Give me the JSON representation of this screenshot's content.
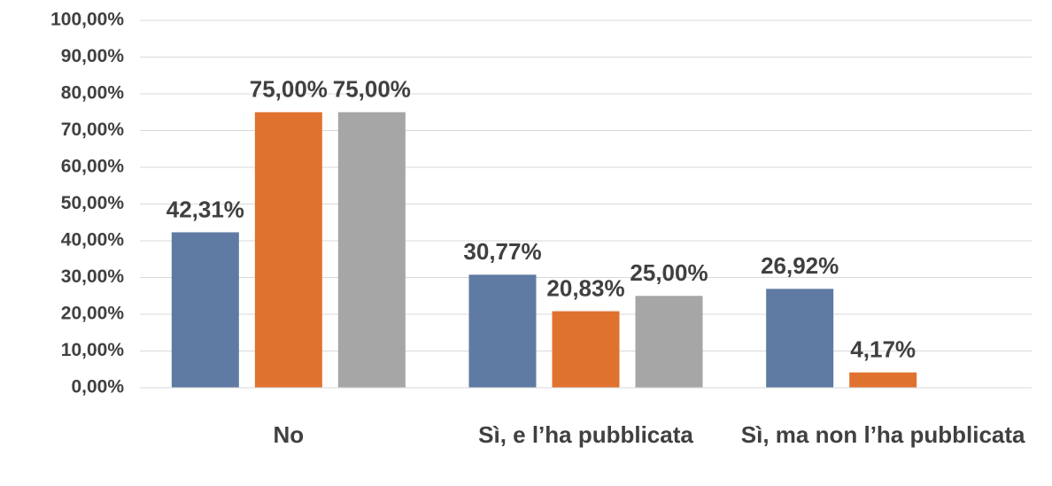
{
  "chart_data": {
    "type": "bar",
    "categories": [
      "No",
      "Sì, e l’ha pubblicata",
      "Sì, ma non l’ha pubblicata"
    ],
    "series": [
      {
        "color": "#5f7ba3",
        "values": [
          42.31,
          30.77,
          26.92
        ],
        "value_labels": [
          "42,31%",
          "30,77%",
          "26,92%"
        ]
      },
      {
        "color": "#e07230",
        "values": [
          75,
          20.83,
          4.17
        ],
        "value_labels": [
          "75,00%",
          "20,83%",
          "4,17%"
        ]
      },
      {
        "color": "#a6a6a6",
        "values": [
          75,
          25,
          null
        ],
        "value_labels": [
          "75,00%",
          "25,00%",
          null
        ]
      }
    ],
    "ylim": [
      0,
      100
    ],
    "yticks": [
      {
        "value": 0,
        "label": "0,00%"
      },
      {
        "value": 10,
        "label": "10,00%"
      },
      {
        "value": 20,
        "label": "20,00%"
      },
      {
        "value": 30,
        "label": "30,00%"
      },
      {
        "value": 40,
        "label": "40,00%"
      },
      {
        "value": 50,
        "label": "50,00%"
      },
      {
        "value": 60,
        "label": "60,00%"
      },
      {
        "value": 70,
        "label": "70,00%"
      },
      {
        "value": 80,
        "label": "80,00%"
      },
      {
        "value": 90,
        "label": "90,00%"
      },
      {
        "value": 100,
        "label": "100,00%"
      }
    ],
    "grid": true
  }
}
